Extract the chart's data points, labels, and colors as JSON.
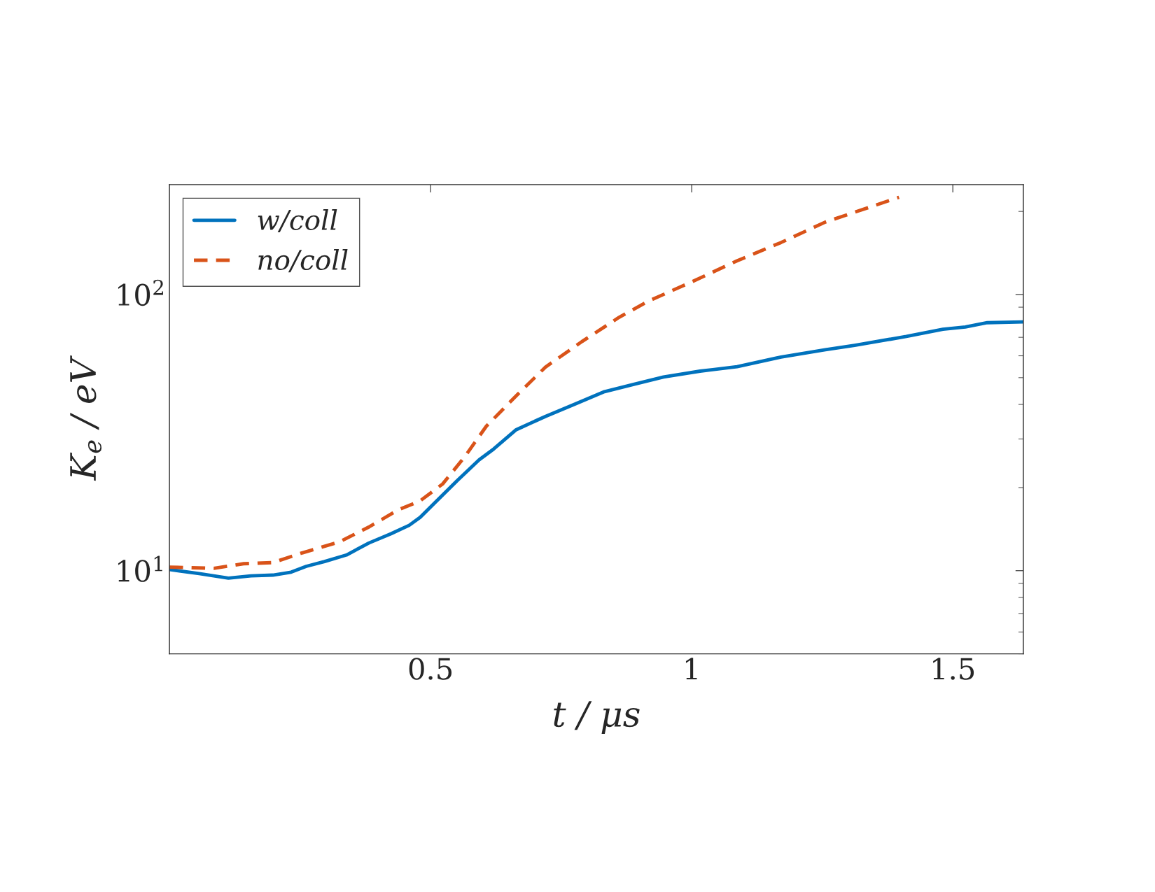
{
  "chart_data": {
    "type": "line",
    "xlabel": "t / μs",
    "ylabel": "K$_{e}$ / eV",
    "log": "y",
    "xlim": [
      0,
      1.635
    ],
    "ylim": [
      5,
      250
    ],
    "xticks": [
      0.5,
      1,
      1.5
    ],
    "yticks": [
      {
        "value": 10,
        "label": "10$^{1}$"
      },
      {
        "value": 100,
        "label": "10$^{2}$"
      }
    ],
    "grid": false,
    "legend": "top left",
    "marker": "none",
    "series": [
      {
        "name": "w/coll",
        "color": "#0072bd",
        "line_style": "solid",
        "x": [
          0,
          0.057,
          0.113,
          0.156,
          0.198,
          0.233,
          0.262,
          0.297,
          0.339,
          0.382,
          0.424,
          0.459,
          0.48,
          0.508,
          0.551,
          0.593,
          0.621,
          0.664,
          0.72,
          0.776,
          0.833,
          0.889,
          0.946,
          1.016,
          1.087,
          1.171,
          1.256,
          1.312,
          1.411,
          1.481,
          1.524,
          1.566,
          1.635
        ],
        "values": [
          10.1,
          9.76,
          9.4,
          9.58,
          9.64,
          9.88,
          10.37,
          10.8,
          11.4,
          12.6,
          13.6,
          14.6,
          15.6,
          17.6,
          21.2,
          25.2,
          27.6,
          32.4,
          36.2,
          40.1,
          44.5,
          47.3,
          50.3,
          52.8,
          54.8,
          59.4,
          63.1,
          65.5,
          70.5,
          74.9,
          76.3,
          79.1,
          79.6
        ]
      },
      {
        "name": "no/coll",
        "color": "#d95319",
        "line_style": "dashed",
        "x": [
          0,
          0.085,
          0.142,
          0.198,
          0.254,
          0.325,
          0.382,
          0.438,
          0.48,
          0.523,
          0.565,
          0.607,
          0.664,
          0.72,
          0.79,
          0.861,
          0.917,
          1.002,
          1.087,
          1.171,
          1.256,
          1.397
        ],
        "values": [
          10.3,
          10.2,
          10.6,
          10.7,
          11.6,
          12.7,
          14.4,
          16.6,
          17.9,
          20.6,
          25.8,
          33.4,
          43.0,
          54.6,
          67.6,
          82.7,
          94.6,
          111.6,
          132.5,
          154.3,
          183,
          225
        ]
      }
    ]
  }
}
